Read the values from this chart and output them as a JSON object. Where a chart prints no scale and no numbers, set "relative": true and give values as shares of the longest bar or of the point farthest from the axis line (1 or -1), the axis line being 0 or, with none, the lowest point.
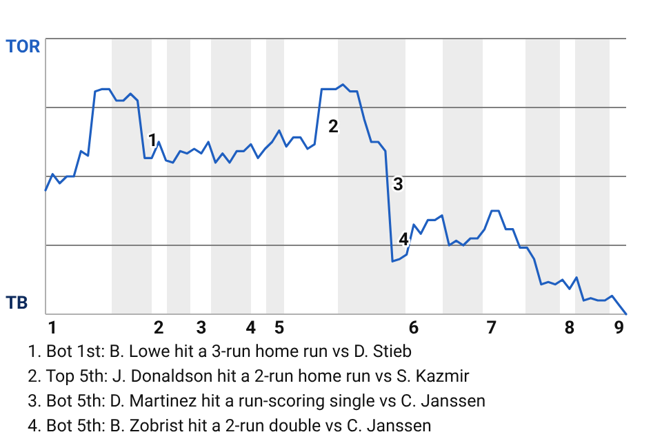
{
  "chart_data": {
    "type": "line",
    "relative": true,
    "categories": [
      null,
      "1",
      null,
      null,
      null,
      null,
      null,
      null,
      null,
      null,
      null,
      null,
      null,
      null,
      null,
      null,
      "2",
      null,
      null,
      null,
      null,
      null,
      "3",
      null,
      null,
      null,
      null,
      null,
      null,
      "4",
      null,
      null,
      null,
      "5",
      null,
      null,
      null,
      null,
      null,
      null,
      null,
      null,
      null,
      null,
      null,
      null,
      null,
      null,
      null,
      null,
      null,
      null,
      "6",
      null,
      null,
      null,
      null,
      null,
      null,
      null,
      null,
      null,
      null,
      "7",
      null,
      null,
      null,
      null,
      null,
      null,
      null,
      null,
      null,
      null,
      "8",
      null,
      null,
      null,
      null,
      null,
      null,
      "9",
      null
    ],
    "series": [
      {
        "color": "#1f5fc0",
        "values": [
          0.54,
          0.61,
          0.57,
          0.6,
          0.6,
          0.71,
          0.69,
          0.97,
          0.98,
          0.98,
          0.93,
          0.93,
          0.96,
          0.93,
          0.68,
          0.68,
          0.75,
          0.67,
          0.66,
          0.71,
          0.7,
          0.72,
          0.7,
          0.75,
          0.66,
          0.7,
          0.66,
          0.71,
          0.71,
          0.74,
          0.68,
          0.72,
          0.75,
          0.8,
          0.73,
          0.77,
          0.77,
          0.72,
          0.74,
          0.98,
          0.98,
          0.98,
          1,
          0.97,
          0.97,
          0.85,
          0.75,
          0.75,
          0.71,
          0.23,
          0.24,
          0.26,
          0.39,
          0.35,
          0.41,
          0.41,
          0.43,
          0.3,
          0.32,
          0.3,
          0.33,
          0.33,
          0.37,
          0.45,
          0.45,
          0.37,
          0.37,
          0.29,
          0.29,
          0.24,
          0.13,
          0.14,
          0.13,
          0.15,
          0.11,
          0.16,
          0.06,
          0.07,
          0.06,
          0.06,
          0.08,
          0.04,
          0
        ]
      }
    ],
    "marker": "none",
    "annotations": [
      "TOR",
      "TB",
      "1",
      "2",
      "3",
      "4",
      "1. Bot 1st: B. Lowe hit a 3-run home run vs D. Stieb",
      "2. Top 5th: J. Donaldson hit a 2-run home run vs S. Kazmir",
      "3. Bot 5th: D. Martinez hit a run-scoring single vs C. Janssen",
      "4. Bot 5th: B. Zobrist hit a 2-run double vs C. Janssen"
    ]
  }
}
